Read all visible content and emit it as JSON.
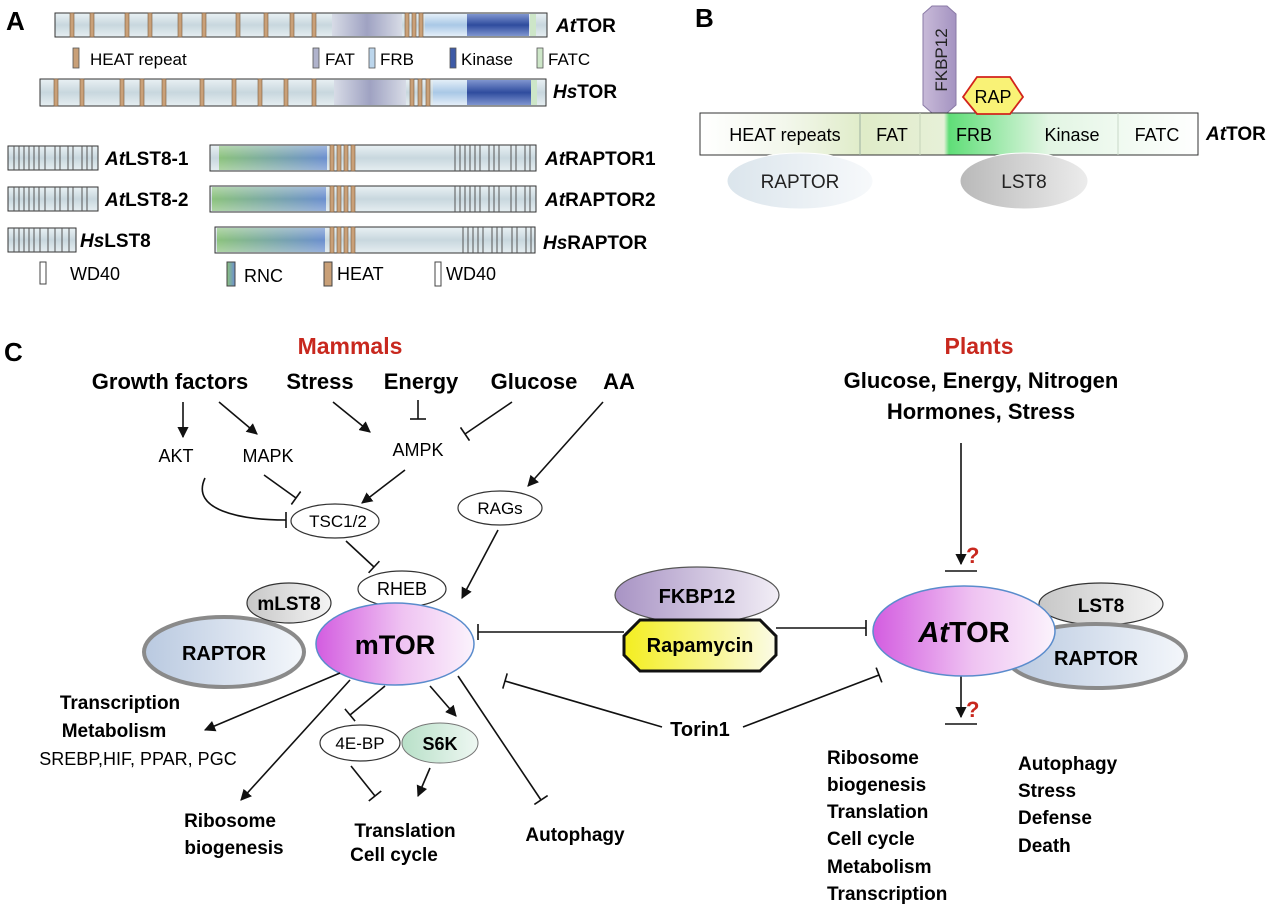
{
  "panel_labels": {
    "a": "A",
    "b": "B",
    "c": "C"
  },
  "panel_a": {
    "attor_label": {
      "prefix": "At",
      "name": "TOR"
    },
    "hstor_label": {
      "prefix": "Hs",
      "name": "TOR"
    },
    "legend_tor": {
      "heat": "HEAT repeat",
      "fat": "FAT",
      "frb": "FRB",
      "kinase": "Kinase",
      "fatc": "FATC"
    },
    "lst8_labels": [
      {
        "prefix": "At",
        "name": "LST8-1"
      },
      {
        "prefix": "At",
        "name": "LST8-2"
      },
      {
        "prefix": "Hs",
        "name": "LST8"
      }
    ],
    "raptor_labels": [
      {
        "prefix": "At",
        "name": "RAPTOR1"
      },
      {
        "prefix": "At",
        "name": "RAPTOR2"
      },
      {
        "prefix": "Hs",
        "name": "RAPTOR"
      }
    ],
    "legend_lower": {
      "wd40_left": "WD40",
      "rnc": "RNC",
      "heat": "HEAT",
      "wd40_right": "WD40"
    }
  },
  "panel_b": {
    "segments": {
      "heat": "HEAT repeats",
      "fat": "FAT",
      "frb": "FRB",
      "kinase": "Kinase",
      "fatc": "FATC"
    },
    "fkbp12": "FKBP12",
    "rap": "RAP",
    "raptor": "RAPTOR",
    "lst8": "LST8",
    "tor_label": {
      "prefix": "At",
      "name": "TOR"
    }
  },
  "panel_c": {
    "mammals": {
      "title": "Mammals",
      "inputs": {
        "growth_factors": "Growth factors",
        "stress": "Stress",
        "energy": "Energy",
        "glucose": "Glucose",
        "aa": "AA"
      },
      "akt": "AKT",
      "mapk": "MAPK",
      "ampk": "AMPK",
      "rags": "RAGs",
      "tsc": "TSC1/2",
      "rheb": "RHEB",
      "mlst8": "mLST8",
      "raptor": "RAPTOR",
      "mtor": "mTOR",
      "transcription": "Transcription",
      "metabolism": "Metabolism",
      "targets": "SREBP,HIF, PPAR, PGC",
      "ebp": "4E-BP",
      "s6k": "S6K",
      "ribosome": "Ribosome",
      "biogenesis": "biogenesis",
      "translation": "Translation",
      "cell_cycle": "Cell cycle",
      "autophagy": "Autophagy"
    },
    "center": {
      "fkbp12": "FKBP12",
      "rapamycin": "Rapamycin",
      "torin1": "Torin1"
    },
    "plants": {
      "title": "Plants",
      "inputs_line1": "Glucose, Energy, Nitrogen",
      "inputs_line2": "Hormones, Stress",
      "q_upper": "?",
      "q_lower": "?",
      "lst8": "LST8",
      "raptor": "RAPTOR",
      "attor": {
        "prefix": "At",
        "name": "TOR"
      },
      "outputs_left": [
        "Ribosome",
        "biogenesis",
        "Translation",
        "Cell cycle",
        "Metabolism",
        "Transcription"
      ],
      "outputs_right": [
        "Autophagy",
        "Stress",
        "Defense",
        "Death"
      ]
    }
  },
  "colors": {
    "heat": "#c9a078",
    "fat": "#a8a8c6",
    "frb": "#bcd6ec",
    "kinase": "#3e5aa6",
    "fatc": "#cde6c8",
    "bar_body": "#cfdde4",
    "rnc": "#6fa2b3",
    "mtor_magenta": "#d96be0",
    "red_label": "#c8281e",
    "rapamycin_yellow": "#f7f232",
    "fkbp12_purple": "#b8a4cc",
    "kinase_green": "#66e07d"
  }
}
